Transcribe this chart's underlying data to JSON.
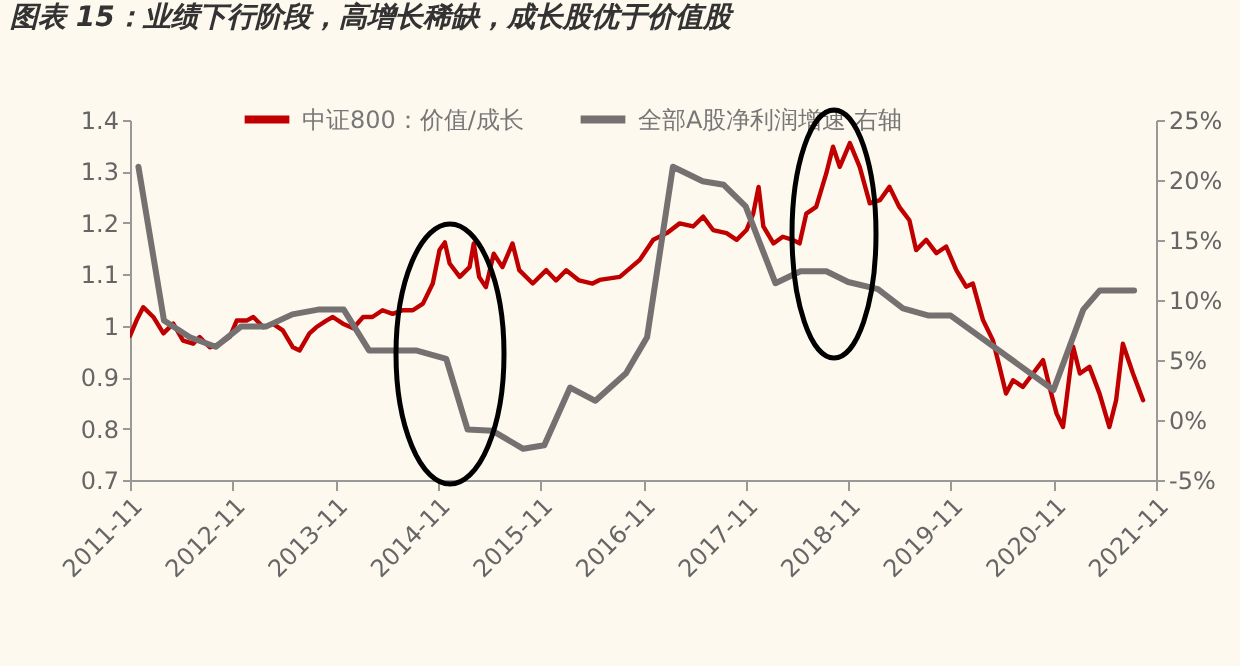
{
  "chart_data": {
    "type": "line",
    "title": "图表 15：业绩下行阶段，高增长稀缺，成长股优于价值股",
    "xlim": [
      "2011-11",
      "2021-11"
    ],
    "xticks": [
      "2011-11",
      "2012-11",
      "2013-11",
      "2014-11",
      "2015-11",
      "2016-11",
      "2017-11",
      "2018-11",
      "2019-11",
      "2020-11",
      "2021-11"
    ],
    "ylim": [
      0.7,
      1.4
    ],
    "yticks": [
      0.7,
      0.8,
      0.9,
      1,
      1.1,
      1.2,
      1.3,
      1.4
    ],
    "y2lim": [
      -5,
      25
    ],
    "y2ticks": [
      {
        "value": -5,
        "label": "-5%"
      },
      {
        "value": 0,
        "label": "0%"
      },
      {
        "value": 5,
        "label": "5%"
      },
      {
        "value": 10,
        "label": "10%"
      },
      {
        "value": 15,
        "label": "15%"
      },
      {
        "value": 20,
        "label": "20%"
      },
      {
        "value": 25,
        "label": "25%"
      }
    ],
    "legend": "top",
    "grid": false,
    "series": [
      {
        "name": "中证800：价值/成长",
        "color": "#c00000",
        "x": [
          "2011-11-01",
          "2011-11-24",
          "2011-12-18",
          "2012-01-23",
          "2012-02-28",
          "2012-04-03",
          "2012-05-08",
          "2012-06-13",
          "2012-07-06",
          "2012-08-11",
          "2012-09-16",
          "2012-10-21",
          "2012-11-15",
          "2012-12-20",
          "2013-01-13",
          "2013-02-18",
          "2013-03-23",
          "2013-04-28",
          "2013-06-03",
          "2013-06-27",
          "2013-08-01",
          "2013-08-25",
          "2013-09-30",
          "2013-10-23",
          "2013-11-28",
          "2014-01-04",
          "2014-02-08",
          "2014-03-13",
          "2014-04-18",
          "2014-05-24",
          "2014-06-29",
          "2014-08-04",
          "2014-09-09",
          "2014-10-14",
          "2014-11-07",
          "2014-11-26",
          "2014-12-13",
          "2015-01-18",
          "2015-02-22",
          "2015-03-09",
          "2015-03-28",
          "2015-04-21",
          "2015-05-19",
          "2015-06-19",
          "2015-07-25",
          "2015-08-18",
          "2015-10-05",
          "2015-11-22",
          "2015-12-27",
          "2016-02-01",
          "2016-03-18",
          "2016-05-05",
          "2016-05-30",
          "2016-08-10",
          "2016-10-20",
          "2016-12-07",
          "2017-01-24",
          "2017-03-11",
          "2017-04-28",
          "2017-06-03",
          "2017-07-08",
          "2017-08-25",
          "2017-09-30",
          "2017-11-04",
          "2017-11-28",
          "2017-12-17",
          "2018-01-03",
          "2018-02-08",
          "2018-03-13",
          "2018-04-18",
          "2018-05-12",
          "2018-06-05",
          "2018-07-10",
          "2018-08-15",
          "2018-09-08",
          "2018-10-02",
          "2018-11-07",
          "2018-12-12",
          "2019-01-17",
          "2019-02-22",
          "2019-03-28",
          "2019-05-02",
          "2019-06-07",
          "2019-07-01",
          "2019-08-06",
          "2019-09-11",
          "2019-10-16",
          "2019-11-21",
          "2019-12-26",
          "2020-01-19",
          "2020-02-24",
          "2020-03-30",
          "2020-04-23",
          "2020-05-16",
          "2020-06-10",
          "2020-07-15",
          "2020-08-20",
          "2020-09-25",
          "2020-10-18",
          "2020-11-12",
          "2020-12-05",
          "2020-12-17",
          "2021-01-10",
          "2021-02-03",
          "2021-03-09",
          "2021-04-14",
          "2021-05-19",
          "2021-06-12",
          "2021-07-06",
          "2021-08-11",
          "2021-09-16"
        ],
        "values": [
          0.98,
          1.01,
          1.036,
          1.017,
          0.985,
          1.004,
          0.971,
          0.965,
          0.978,
          0.958,
          0.965,
          0.978,
          1.01,
          1.01,
          1.017,
          0.997,
          1.004,
          0.991,
          0.958,
          0.952,
          0.985,
          0.997,
          1.01,
          1.017,
          1.004,
          0.995,
          1.017,
          1.017,
          1.03,
          1.023,
          1.03,
          1.03,
          1.043,
          1.082,
          1.147,
          1.162,
          1.121,
          1.095,
          1.114,
          1.16,
          1.095,
          1.075,
          1.14,
          1.114,
          1.16,
          1.108,
          1.082,
          1.108,
          1.088,
          1.108,
          1.088,
          1.082,
          1.089,
          1.095,
          1.128,
          1.167,
          1.18,
          1.199,
          1.193,
          1.212,
          1.186,
          1.18,
          1.167,
          1.186,
          1.218,
          1.27,
          1.193,
          1.16,
          1.173,
          1.167,
          1.16,
          1.218,
          1.231,
          1.296,
          1.348,
          1.309,
          1.355,
          1.309,
          1.238,
          1.244,
          1.27,
          1.231,
          1.205,
          1.147,
          1.167,
          1.141,
          1.154,
          1.108,
          1.076,
          1.082,
          1.011,
          0.972,
          0.92,
          0.868,
          0.894,
          0.881,
          0.907,
          0.933,
          0.881,
          0.829,
          0.803,
          0.855,
          0.959,
          0.907,
          0.92,
          0.868,
          0.803,
          0.855,
          0.965,
          0.907,
          0.855
        ]
      },
      {
        "name": "全部A股净利润增速 右轴",
        "color": "#767171",
        "axis": "y2",
        "x": [
          "2011-12-01",
          "2012-03-01",
          "2012-06-01",
          "2012-09-01",
          "2012-12-01",
          "2013-03-01",
          "2013-06-01",
          "2013-09-01",
          "2013-12-01",
          "2014-03-01",
          "2014-08-15",
          "2014-12-01",
          "2015-02-15",
          "2015-05-15",
          "2015-09-01",
          "2015-11-15",
          "2016-02-15",
          "2016-05-15",
          "2016-09-01",
          "2016-11-15",
          "2017-02-15",
          "2017-06-01",
          "2017-08-15",
          "2017-11-01",
          "2018-02-15",
          "2018-05-15",
          "2018-08-15",
          "2018-11-01",
          "2019-02-15",
          "2019-05-15",
          "2019-08-15",
          "2019-11-01",
          "2020-11-01",
          "2021-02-15",
          "2021-04-15",
          "2021-08-15"
        ],
        "values": [
          21.1,
          8.3,
          6.9,
          6.1,
          7.8,
          7.8,
          8.8,
          9.2,
          9.2,
          5.8,
          5.8,
          5.1,
          -0.8,
          -0.9,
          -2.4,
          -2.1,
          2.7,
          1.6,
          3.9,
          6.9,
          21.1,
          19.9,
          19.6,
          17.8,
          11.4,
          12.4,
          12.4,
          11.5,
          10.9,
          9.3,
          8.7,
          8.7,
          2.5,
          9.2,
          10.8,
          10.8
        ]
      }
    ]
  }
}
